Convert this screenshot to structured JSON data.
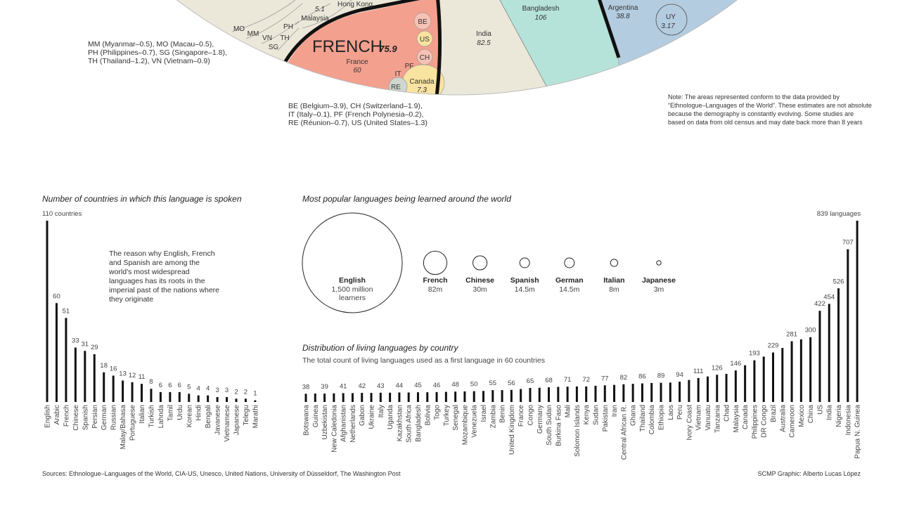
{
  "map": {
    "labels": [
      {
        "name": "Hong Kong"
      },
      {
        "name": "Malaysia",
        "value": 5.1
      },
      {
        "name": "MO"
      },
      {
        "name": "MM"
      },
      {
        "name": "VN"
      },
      {
        "name": "PH"
      },
      {
        "name": "TH"
      },
      {
        "name": "SG"
      },
      {
        "name": "BE"
      },
      {
        "name": "US"
      },
      {
        "name": "CH"
      },
      {
        "name": "PF"
      },
      {
        "name": "IT"
      },
      {
        "name": "RE"
      },
      {
        "name": "FRENCH",
        "value": 75.9
      },
      {
        "name": "France",
        "value": 60
      },
      {
        "name": "Canada",
        "value": 7.3
      },
      {
        "name": "India",
        "value": 82.5
      },
      {
        "name": "Bangladesh",
        "value": 106
      },
      {
        "name": "Argentina",
        "value": 38.8
      },
      {
        "name": "UY",
        "value": 3.17
      }
    ]
  },
  "footnotes": {
    "left": [
      "MM (Myanmar–0.5), MO (Macau–0.5),",
      "PH (Philippines–0.7), SG (Singapore–1.8),",
      "TH (Thailand–1.2), VN (Vietnam–0.9)"
    ],
    "center": [
      "BE (Belgium–3.9), CH (Switzerland–1.9),",
      "IT (Italy–0.1), PF (French Polynesia–0.2),",
      "RE (Réunion–0.7), US (United States–1.3)"
    ]
  },
  "note": [
    "Note: The areas represented conform to the data provided by",
    "“Ethnologue–Languages of the World”. These estimates are not absolute",
    "because the demography is constantly evolving. Some studies are",
    "based on data from old census and may date back more than 8 years"
  ],
  "annotation": "The reason why English, French and Spanish are among the world's most widespread languages has its roots in the imperial past of the nations where they originate",
  "sources": "Sources: Ethnologue–Languages of the World, CIA-US, Unesco, United Nations, University of Düsseldorf, The Washington Post",
  "credit": "SCMP Graphic: Alberto Lucas López",
  "chart_data": [
    {
      "type": "bar",
      "title": "Number of countries in which this language is spoken",
      "color": "#111111",
      "categories": [
        "English",
        "Arabic",
        "French",
        "Chinese",
        "Spanish",
        "Persian",
        "German",
        "Russian",
        "Malay/Bahasa",
        "Portuguese",
        "Italian",
        "Turkish",
        "Lahnda",
        "Tamil",
        "Urdu",
        "Korean",
        "Hindi",
        "Bengali",
        "Javanese",
        "Vietnamese",
        "Japanese",
        "Telegu",
        "Marathi"
      ],
      "values": [
        110,
        60,
        51,
        33,
        31,
        29,
        18,
        16,
        13,
        12,
        11,
        8,
        6,
        6,
        6,
        5,
        4,
        4,
        3,
        3,
        2,
        2,
        1
      ],
      "value_labels": [
        "110 countries",
        "60",
        "51",
        "33",
        "31",
        "29",
        "18",
        "16",
        "13",
        "12",
        "11",
        "8",
        "6",
        "6",
        "6",
        "5",
        "4",
        "4",
        "3",
        "3",
        "2",
        "2",
        "1"
      ],
      "ylim": [
        0,
        110
      ]
    },
    {
      "type": "bubble",
      "title": "Most popular languages being learned around the world",
      "categories": [
        "English",
        "French",
        "Chinese",
        "Spanish",
        "German",
        "Italian",
        "Japanese"
      ],
      "values": [
        1500,
        82,
        30,
        14.5,
        14.5,
        8,
        3
      ],
      "value_labels": [
        "1,500 million learners",
        "82m",
        "30m",
        "14.5m",
        "14.5m",
        "8m",
        "3m"
      ]
    },
    {
      "type": "bar",
      "title": "Distribution of living languages by country",
      "subtitle": "The total count of living languages used as a first language in 60 countries",
      "color": "#111111",
      "categories": [
        "Botswana",
        "Guinea",
        "Uzbekistan",
        "New Caledonia",
        "Afghanistan",
        "Netherlands",
        "Gabon",
        "Ukraine",
        "Italy",
        "Uganda",
        "Kazakhstan",
        "South Africa",
        "Bangladesh",
        "Bolivia",
        "Togo",
        "Turkey",
        "Senegal",
        "Mozambique",
        "Venezuela",
        "Israel",
        "Zambia",
        "Benin",
        "United Kingdom",
        "France",
        "Congo",
        "Germany",
        "South Sudan",
        "Burkina Faso",
        "Mali",
        "Solomon Islands",
        "Kenya",
        "Sudan",
        "Pakistan",
        "Iran",
        "Central African R.",
        "Ghana",
        "Thailand",
        "Colombia",
        "Ethiopia",
        "Laos",
        "Peru",
        "Ivory Coast",
        "Vietnam",
        "Vanuatu",
        "Tanzania",
        "Chad",
        "Malaysia",
        "Canada",
        "Philippines",
        "DR Congo",
        "Brazil",
        "Australia",
        "Cameroon",
        "Mexico",
        "China",
        "US",
        "India",
        "Nigeria",
        "Indonesia",
        "Papua N. Guinea"
      ],
      "values": [
        38,
        39,
        39,
        40,
        41,
        41,
        42,
        42,
        43,
        43,
        44,
        44,
        45,
        45,
        46,
        47,
        48,
        49,
        50,
        51,
        55,
        55,
        56,
        60,
        65,
        66,
        68,
        70,
        71,
        72,
        72,
        75,
        77,
        79,
        82,
        84,
        86,
        88,
        89,
        90,
        94,
        102,
        111,
        118,
        126,
        130,
        146,
        170,
        193,
        210,
        229,
        250,
        281,
        290,
        300,
        422,
        454,
        526,
        707,
        839
      ],
      "value_labels": [
        "38",
        null,
        "39",
        null,
        "41",
        null,
        "42",
        null,
        "43",
        null,
        "44",
        null,
        "45",
        null,
        "46",
        null,
        "48",
        null,
        "50",
        null,
        "55",
        null,
        "56",
        null,
        "65",
        null,
        "68",
        null,
        "71",
        null,
        "72",
        null,
        "77",
        null,
        "82",
        null,
        "86",
        null,
        "89",
        null,
        "94",
        null,
        "111",
        null,
        "126",
        null,
        "146",
        null,
        "193",
        null,
        "229",
        null,
        "281",
        null,
        "300",
        "422",
        "454",
        "526",
        "707",
        "839 languages"
      ],
      "ylim": [
        0,
        839
      ]
    }
  ]
}
